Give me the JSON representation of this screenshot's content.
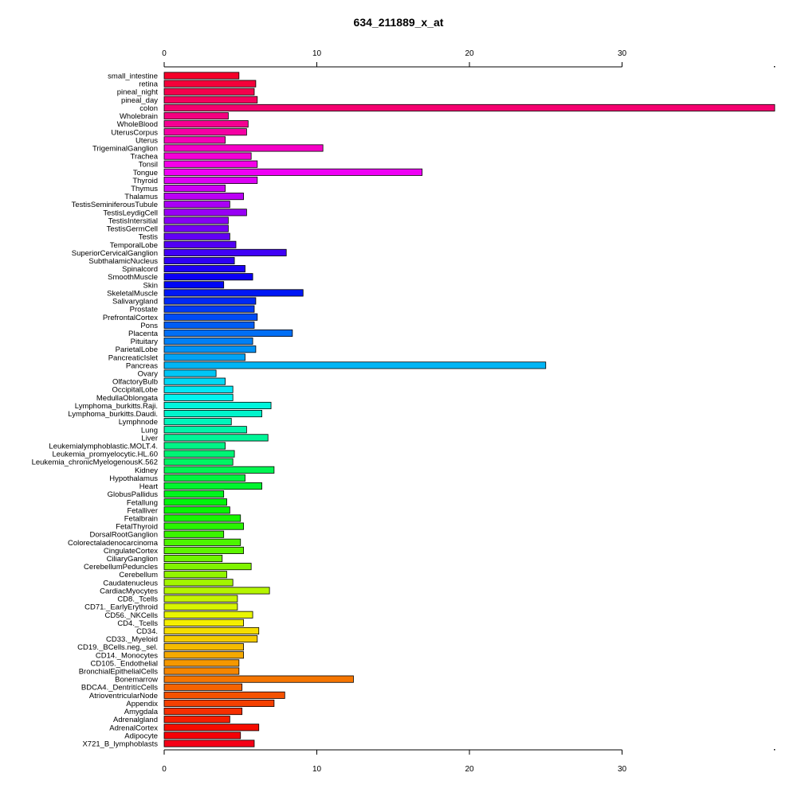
{
  "chart_data": {
    "type": "bar",
    "orientation": "horizontal",
    "title": "634_211889_x_at",
    "xlabel": "",
    "ylabel": "",
    "xlim": [
      0,
      40
    ],
    "xticks": [
      0,
      10,
      20,
      30
    ],
    "grid": false,
    "legend": "none",
    "categories": [
      "small_intestine",
      "retina",
      "pineal_night",
      "pineal_day",
      "colon",
      "Wholebrain",
      "WholeBlood",
      "UterusCorpus",
      "Uterus",
      "TrigeminalGanglion",
      "Trachea",
      "Tonsil",
      "Tongue",
      "Thyroid",
      "Thymus",
      "Thalamus",
      "TestisSeminiferousTubule",
      "TestisLeydigCell",
      "TestisIntersitial",
      "TestisGermCell",
      "Testis",
      "TemporalLobe",
      "SuperiorCervicalGanglion",
      "SubthalamicNucleus",
      "Spinalcord",
      "SmoothMuscle",
      "Skin",
      "SkeletalMuscle",
      "Salivarygland",
      "Prostate",
      "PrefrontalCortex",
      "Pons",
      "Placenta",
      "Pituitary",
      "ParietalLobe",
      "PancreaticIslet",
      "Pancreas",
      "Ovary",
      "OlfactoryBulb",
      "OccipitalLobe",
      "MedullaOblongata",
      "Lymphoma_burkitts.Raji.",
      "Lymphoma_burkitts.Daudi.",
      "Lymphnode",
      "Lung",
      "Liver",
      "Leukemialymphoblastic.MOLT.4.",
      "Leukemia_promyelocytic.HL.60",
      "Leukemia_chronicMyelogenousK.562",
      "Kidney",
      "Hypothalamus",
      "Heart",
      "GlobusPallidus",
      "Fetallung",
      "Fetalliver",
      "Fetalbrain",
      "FetalThyroid",
      "DorsalRootGanglion",
      "Colorectaladenocarcinoma",
      "CingulateCortex",
      "CiliaryGanglion",
      "CerebellumPeduncles",
      "Cerebellum",
      "Caudatenucleus",
      "CardiacMyocytes",
      "CD8._Tcells",
      "CD71._EarlyErythroid",
      "CD56._NKCells",
      "CD4._Tcells",
      "CD34.",
      "CD33._Myeloid",
      "CD19._BCells.neg._sel.",
      "CD14._Monocytes",
      "CD105._Endothelial",
      "BronchialEpithelialCells",
      "Bonemarrow",
      "BDCA4._DentritícCells",
      "AtrioventricularNode",
      "Appendix",
      "Amygdala",
      "Adrenalgland",
      "AdrenalCortex",
      "Adipocyte",
      "X721_B_lymphoblasts"
    ],
    "values": [
      4.9,
      6.0,
      5.9,
      6.1,
      40.0,
      4.2,
      5.5,
      5.4,
      4.0,
      10.4,
      5.7,
      6.1,
      16.9,
      6.1,
      4.0,
      5.2,
      4.3,
      5.4,
      4.2,
      4.2,
      4.3,
      4.7,
      8.0,
      4.6,
      5.3,
      5.8,
      3.9,
      9.1,
      6.0,
      5.9,
      6.1,
      5.9,
      8.4,
      5.8,
      6.0,
      5.3,
      25.0,
      3.4,
      4.0,
      4.5,
      4.5,
      7.0,
      6.4,
      4.4,
      5.4,
      6.8,
      4.0,
      4.6,
      4.5,
      7.2,
      5.3,
      6.4,
      3.9,
      4.1,
      4.3,
      5.0,
      5.2,
      3.9,
      5.0,
      5.2,
      3.8,
      5.7,
      4.1,
      4.5,
      6.9,
      4.8,
      4.8,
      5.8,
      5.2,
      6.2,
      6.1,
      5.2,
      5.2,
      4.9,
      4.9,
      12.4,
      5.1,
      7.9,
      7.2,
      5.1,
      4.3,
      6.2,
      5.0,
      5.9
    ]
  }
}
